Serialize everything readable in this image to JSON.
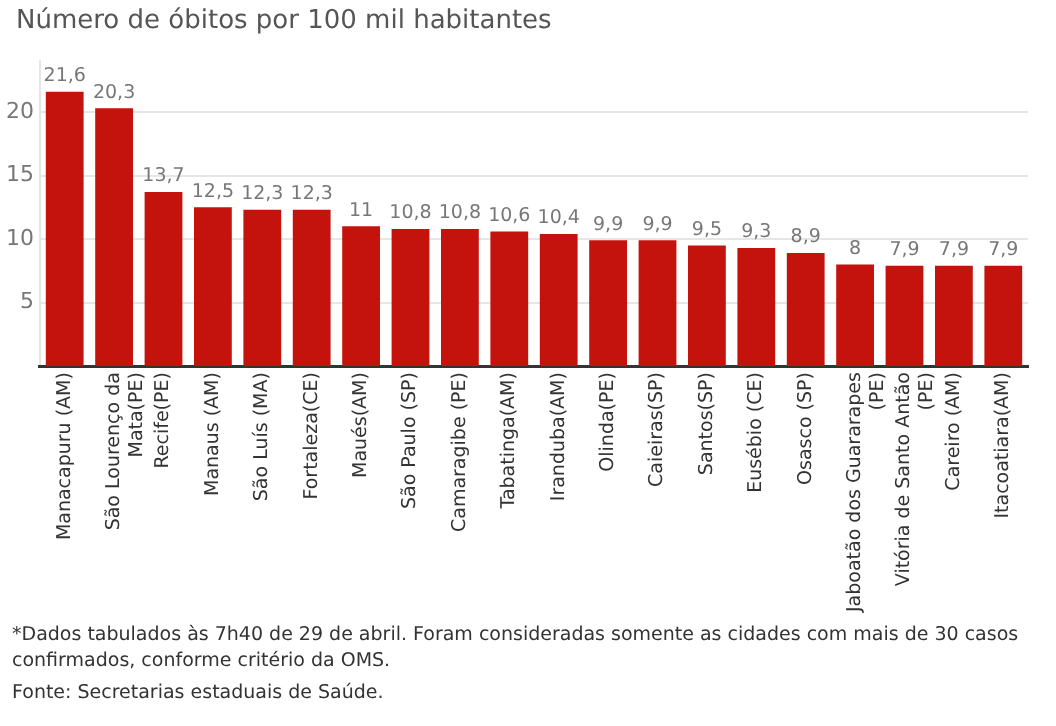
{
  "chart_data": {
    "type": "bar",
    "title": "Número de óbitos por 100 mil habitantes",
    "categories": [
      "Manacapuru (AM)",
      "São Lourenço da Mata(PE)",
      "Recife(PE)",
      "Manaus (AM)",
      "São Luís (MA)",
      "Fortaleza(CE)",
      "Maués(AM)",
      "São Paulo (SP)",
      "Camaragibe (PE)",
      "Tabatinga(AM)",
      "Iranduba(AM)",
      "Olinda(PE)",
      "Caieiras(SP)",
      "Santos(SP)",
      "Eusébio (CE)",
      "Osasco (SP)",
      "Jaboatão dos Guararapes (PE)",
      "Vitória de Santo Antão (PE)",
      "Careiro (AM)",
      "Itacoatiara(AM)"
    ],
    "values": [
      21.6,
      20.3,
      13.7,
      12.5,
      12.3,
      12.3,
      11,
      10.8,
      10.8,
      10.6,
      10.4,
      9.9,
      9.9,
      9.5,
      9.3,
      8.9,
      8,
      7.9,
      7.9,
      7.9
    ],
    "value_labels": [
      "21,6",
      "20,3",
      "13,7",
      "12,5",
      "12,3",
      "12,3",
      "11",
      "10,8",
      "10,8",
      "10,6",
      "10,4",
      "9,9",
      "9,9",
      "9,5",
      "9,3",
      "8,9",
      "8",
      "7,9",
      "7,9",
      "7,9"
    ],
    "color": "#c4120c",
    "ylim": [
      0,
      24
    ],
    "yticks": [
      5,
      10,
      15,
      20
    ],
    "grid": "y",
    "annotations": [
      "*Dados tabulados às 7h40 de 29 de abril. Foram consideradas somente as cidades com mais de 30 casos confirmados, conforme critério da OMS.",
      "Fonte: Secretarias estaduais de Saúde."
    ]
  }
}
